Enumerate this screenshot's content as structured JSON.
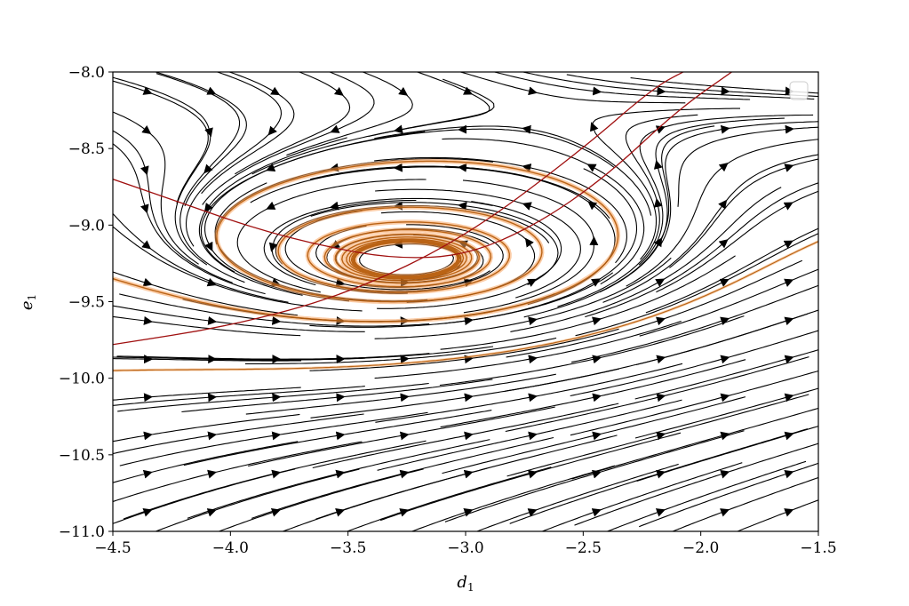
{
  "chart_data": {
    "type": "streamplot",
    "xlabel": "d",
    "xlabel_sub": "1",
    "ylabel": "e",
    "ylabel_sub": "1",
    "xlim": [
      -4.5,
      -1.5
    ],
    "ylim": [
      -11.0,
      -8.0
    ],
    "x_ticks": [
      -4.5,
      -4.0,
      -3.5,
      -3.0,
      -2.5,
      -2.0,
      -1.5
    ],
    "y_ticks": [
      -8.0,
      -8.5,
      -9.0,
      -9.5,
      -10.0,
      -10.5,
      -11.0
    ],
    "x_tick_labels": [
      "−4.5",
      "−4.0",
      "−3.5",
      "−3.0",
      "−2.5",
      "−2.0",
      "−1.5"
    ],
    "y_tick_labels": [
      "−8.0",
      "−8.5",
      "−9.0",
      "−9.5",
      "−10.0",
      "−10.5",
      "−11.0"
    ],
    "focus_point": {
      "x": -3.25,
      "y": -9.23
    },
    "nullcline_color": "#a01010",
    "stream_color": "#000000",
    "trajectory_colors": [
      "#f7a35c",
      "#b35806"
    ],
    "nullclines": [
      {
        "name": "",
        "x": [
          -4.5,
          -4.2,
          -3.9,
          -3.6,
          -3.3,
          -3.0,
          -2.7,
          -2.4,
          -2.1,
          -1.85
        ],
        "y": [
          -8.7,
          -8.86,
          -9.02,
          -9.14,
          -9.22,
          -9.2,
          -9.0,
          -8.68,
          -8.25,
          -7.98
        ]
      },
      {
        "name": "",
        "x": [
          -4.5,
          -4.0,
          -3.5,
          -3.0,
          -2.5,
          -2.2,
          -2.05
        ],
        "y": [
          -9.78,
          -9.66,
          -9.45,
          -9.08,
          -8.5,
          -8.1,
          -7.98
        ]
      }
    ],
    "grid": false,
    "legend": "top-right (empty)"
  },
  "legend": {
    "entries": []
  }
}
